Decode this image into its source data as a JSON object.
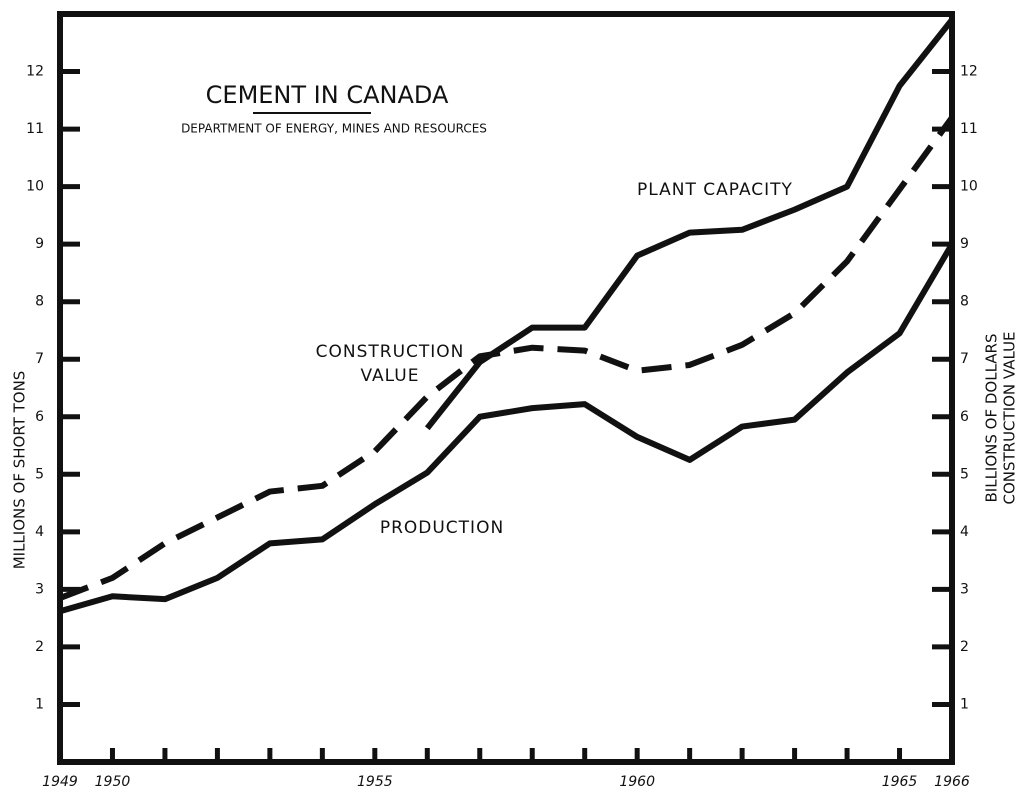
{
  "chart_data": {
    "type": "line",
    "title": "CEMENT IN CANADA",
    "subtitle": "DEPARTMENT OF ENERGY, MINES AND RESOURCES",
    "ylabel": "MILLIONS OF SHORT TONS",
    "y2label": [
      "BILLIONS OF DOLLARS",
      "CONSTRUCTION VALUE"
    ],
    "xlim": [
      1949,
      1966
    ],
    "xticks": [
      1949,
      1950,
      1955,
      1960,
      1965,
      1966
    ],
    "xminor_ticks": [
      1950,
      1951,
      1952,
      1953,
      1954,
      1955,
      1956,
      1957,
      1958,
      1959,
      1960,
      1961,
      1962,
      1963,
      1964,
      1965
    ],
    "ylim": [
      0,
      13
    ],
    "yticks": [
      1,
      2,
      3,
      4,
      5,
      6,
      7,
      8,
      9,
      10,
      11,
      12
    ],
    "y2lim": [
      0,
      13
    ],
    "y2ticks": [
      1,
      2,
      3,
      4,
      5,
      6,
      7,
      8,
      9,
      10,
      11,
      12
    ],
    "series": [
      {
        "name": "PLANT CAPACITY",
        "color": "#111111",
        "dashed": false,
        "x": [
          1956,
          1957,
          1958,
          1959,
          1960,
          1961,
          1962,
          1963,
          1964,
          1965,
          1966
        ],
        "values": [
          5.8,
          6.95,
          7.55,
          7.55,
          8.8,
          9.2,
          9.25,
          9.6,
          10.0,
          11.75,
          12.9
        ]
      },
      {
        "name": "CONSTRUCTION VALUE",
        "color": "#111111",
        "dashed": true,
        "axis": "y2",
        "x": [
          1949,
          1950,
          1951,
          1952,
          1953,
          1954,
          1955,
          1956,
          1957,
          1958,
          1959,
          1960,
          1961,
          1962,
          1963,
          1964,
          1965,
          1966
        ],
        "values": [
          2.85,
          3.2,
          3.8,
          4.25,
          4.7,
          4.8,
          5.4,
          6.35,
          7.05,
          7.2,
          7.15,
          6.8,
          6.9,
          7.25,
          7.8,
          8.7,
          9.95,
          11.2
        ]
      },
      {
        "name": "PRODUCTION",
        "color": "#111111",
        "dashed": false,
        "x": [
          1949,
          1950,
          1951,
          1952,
          1953,
          1954,
          1955,
          1956,
          1957,
          1958,
          1959,
          1960,
          1961,
          1962,
          1963,
          1964,
          1965,
          1966
        ],
        "values": [
          2.62,
          2.88,
          2.83,
          3.2,
          3.8,
          3.87,
          4.48,
          5.03,
          6.0,
          6.15,
          6.22,
          5.65,
          5.25,
          5.83,
          5.95,
          6.77,
          7.45,
          9.0
        ]
      }
    ]
  }
}
